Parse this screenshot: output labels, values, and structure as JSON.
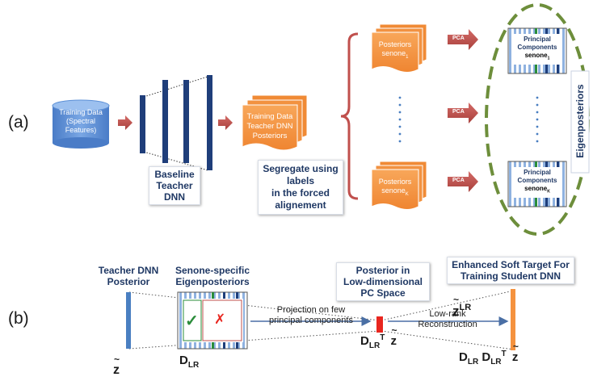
{
  "panel_a": {
    "label": "(a)",
    "training_data": [
      "Training Data",
      "(Spectral",
      "Features)"
    ],
    "teacher_dnn": [
      "Baseline",
      "Teacher",
      "DNN"
    ],
    "posteriors_doc": [
      "Training Data",
      "Teacher DNN",
      "Posteriors"
    ],
    "segregate": [
      "Segregate using",
      "labels",
      "in the forced",
      "alignement"
    ],
    "posteriors_top": {
      "text": "Posteriors",
      "sub_prefix": "senone",
      "sub_index": "1"
    },
    "posteriors_bottom": {
      "text": "Posteriors",
      "sub_prefix": "senone",
      "sub_index": "K"
    },
    "pca_labels": [
      "PCA",
      "PCA",
      "PCA"
    ],
    "pc_top": {
      "line1": "Principal",
      "line2": "Components",
      "sub_prefix": "senone",
      "sub_index": "1"
    },
    "pc_bottom": {
      "line1": "Principal",
      "line2": "Components",
      "sub_prefix": "senone",
      "sub_index": "K"
    },
    "eigenposteriors": "Eigenposteriors"
  },
  "panel_b": {
    "label": "(b)",
    "teacher_posterior": [
      "Teacher DNN",
      "Posterior"
    ],
    "senone_specific": [
      "Senone-specific",
      "Eigenposteriors"
    ],
    "posterior_low": [
      "Posterior in",
      "Low-dimensional",
      "PC Space"
    ],
    "enhanced": [
      "Enhanced Soft Target For",
      "Training Student DNN"
    ],
    "projection": [
      "Projection on few",
      "principal components"
    ],
    "reconstruction": [
      "Low-rank",
      "Reconstruction"
    ],
    "check_symbol": "✓",
    "cross_symbol": "✗",
    "z_tilde": "z",
    "z_lr": {
      "base": "z",
      "sup": "LR"
    },
    "d_lr": {
      "base": "D",
      "sub": "LR"
    },
    "d_lr_t_z": {
      "base": "D",
      "sub": "LR",
      "sup": "T",
      "z": "z"
    },
    "d_d_z": {
      "base1": "D",
      "sub1": "LR",
      "base2": "D",
      "sub2": "LR",
      "sup": "T",
      "z": "z"
    }
  },
  "colors": {
    "navy": "#1f3e7a",
    "cylinder": "#5b8fd6",
    "orange": "#f5923e",
    "arrow_red": "#c0504d",
    "brace": "#c0504d",
    "dash_green": "#6d8e3b",
    "blue_bar": "#4a7fc1",
    "red_bar": "#e8261f",
    "orange_bar": "#f5923e"
  }
}
